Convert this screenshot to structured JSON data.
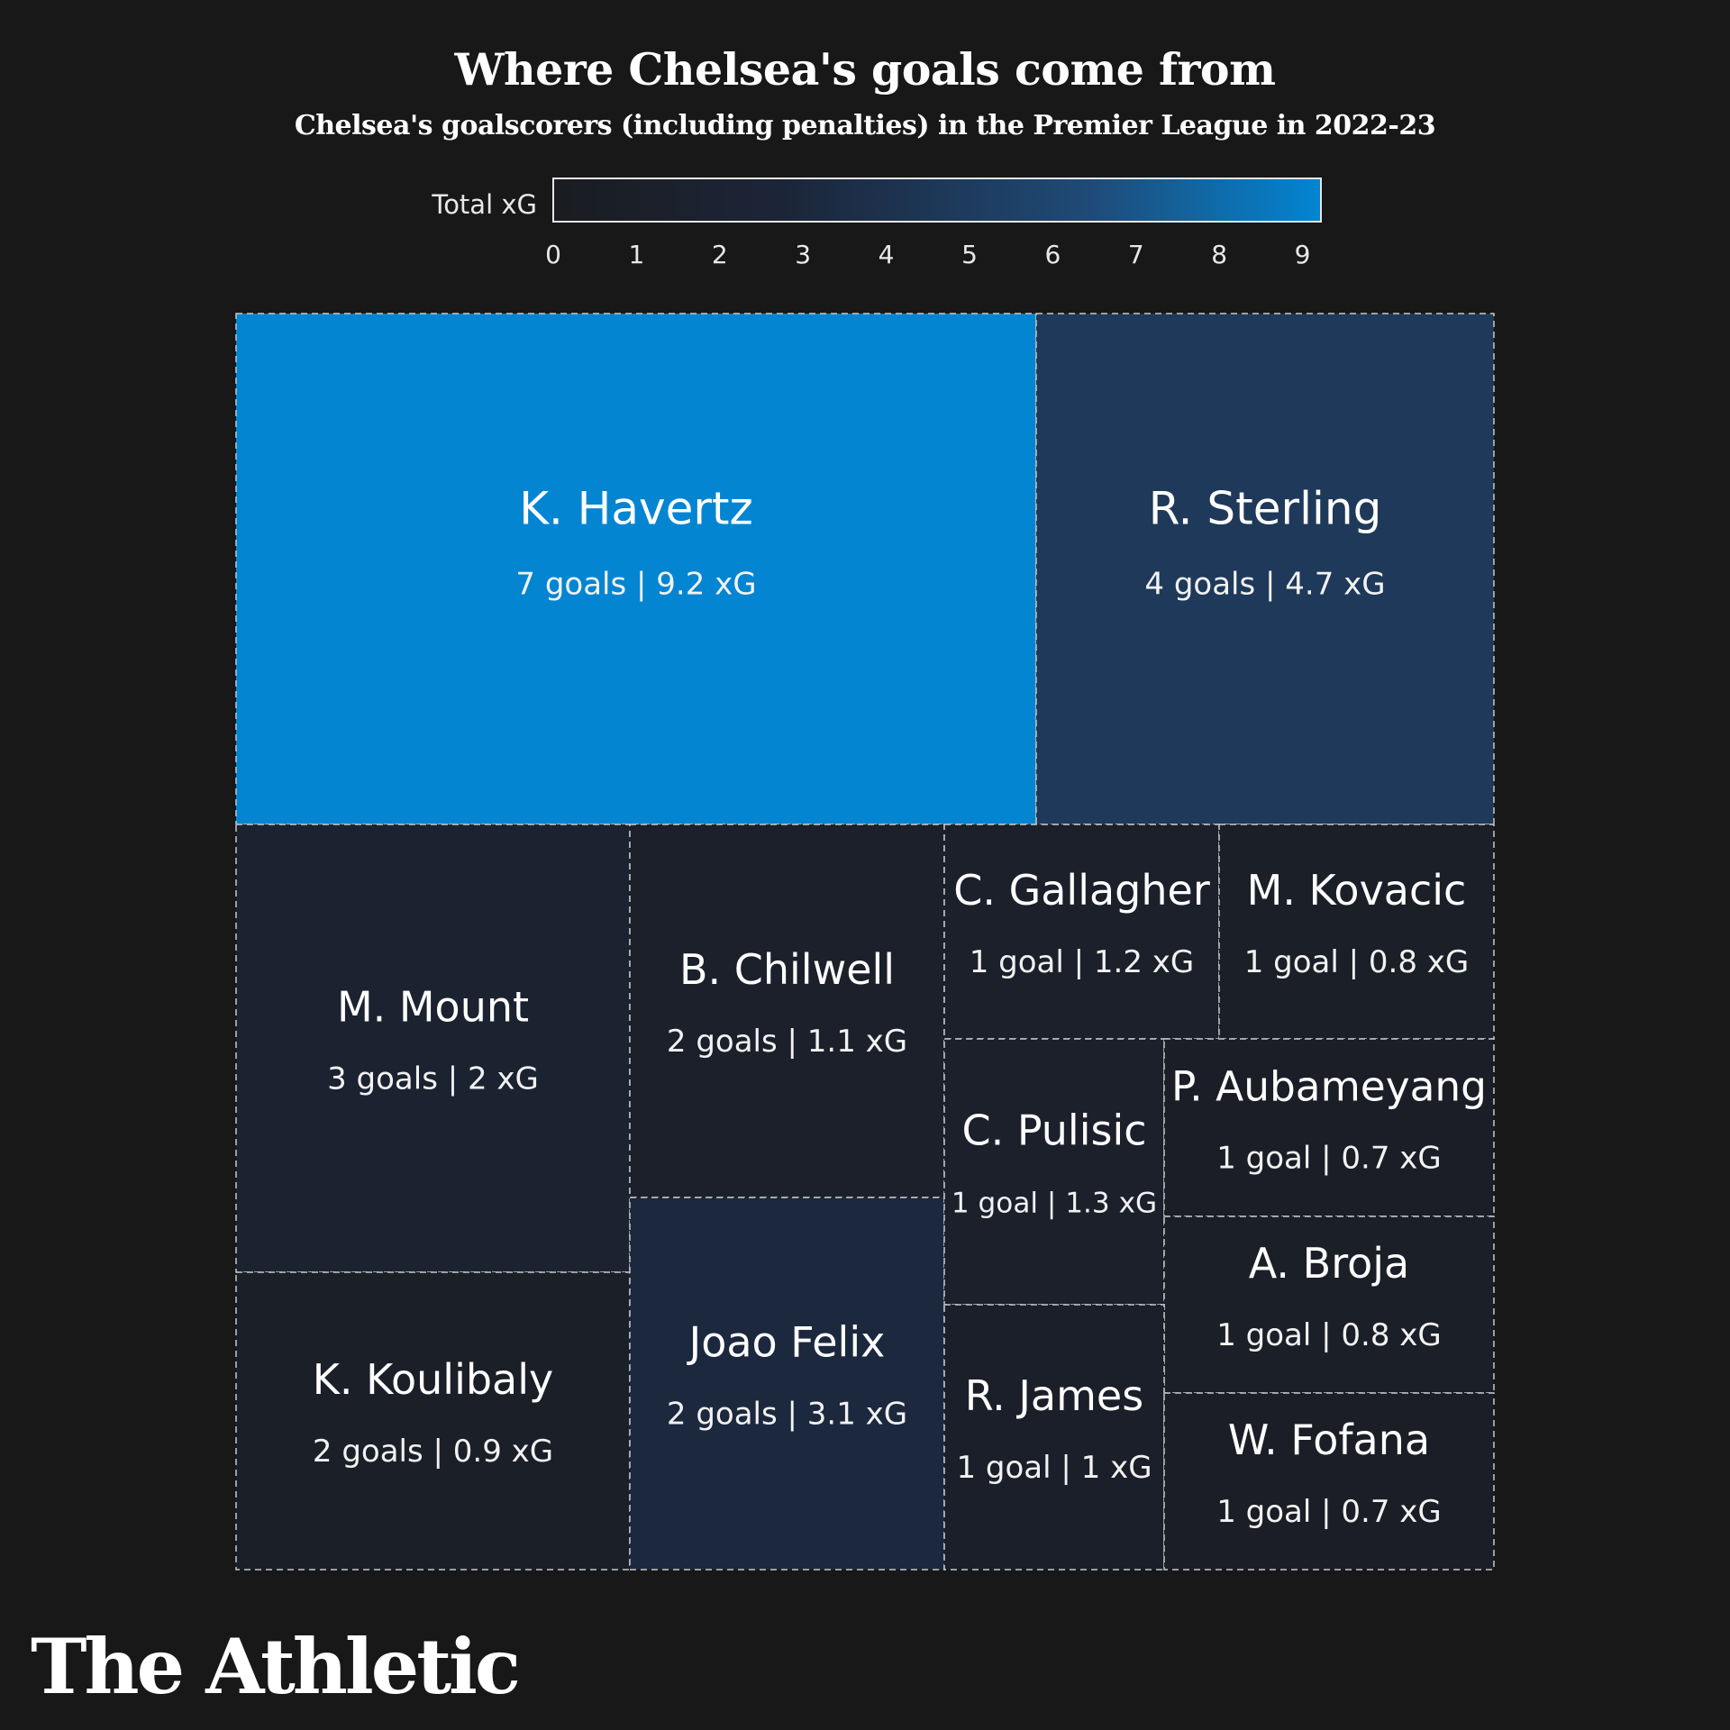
{
  "chart_data": {
    "type": "treemap",
    "title": "Where Chelsea's goals come from",
    "subtitle": "Chelsea's goalscorers (including penalties) in the Premier League in 2022-23",
    "legend": {
      "label": "Total xG",
      "range": [
        0,
        9.2
      ],
      "ticks": [
        "0",
        "1",
        "2",
        "3",
        "4",
        "5",
        "6",
        "7",
        "8",
        "9"
      ],
      "color_low": "#1a1c20",
      "color_high": "#0385d2"
    },
    "players": [
      {
        "name": "K. Havertz",
        "goals": 7,
        "xg": 9.2,
        "stat": "7 goals | 9.2 xG"
      },
      {
        "name": "R. Sterling",
        "goals": 4,
        "xg": 4.7,
        "stat": "4 goals | 4.7 xG"
      },
      {
        "name": "M. Mount",
        "goals": 3,
        "xg": 2,
        "stat": "3 goals | 2 xG"
      },
      {
        "name": "K. Koulibaly",
        "goals": 2,
        "xg": 0.9,
        "stat": "2 goals | 0.9 xG"
      },
      {
        "name": "B. Chilwell",
        "goals": 2,
        "xg": 1.1,
        "stat": "2 goals | 1.1 xG"
      },
      {
        "name": "Joao Felix",
        "goals": 2,
        "xg": 3.1,
        "stat": "2 goals | 3.1 xG"
      },
      {
        "name": "C. Gallagher",
        "goals": 1,
        "xg": 1.2,
        "stat": "1 goal | 1.2 xG"
      },
      {
        "name": "M. Kovacic",
        "goals": 1,
        "xg": 0.8,
        "stat": "1 goal | 0.8 xG"
      },
      {
        "name": "C. Pulisic",
        "goals": 1,
        "xg": 1.3,
        "stat": "1 goal | 1.3 xG"
      },
      {
        "name": "P. Aubameyang",
        "goals": 1,
        "xg": 0.7,
        "stat": "1 goal | 0.7 xG"
      },
      {
        "name": "A. Broja",
        "goals": 1,
        "xg": 0.8,
        "stat": "1 goal | 0.8 xG"
      },
      {
        "name": "R. James",
        "goals": 1,
        "xg": 1,
        "stat": "1 goal | 1 xG"
      },
      {
        "name": "W. Fofana",
        "goals": 1,
        "xg": 0.7,
        "stat": "1 goal | 0.7 xG"
      }
    ]
  },
  "brand": {
    "logo_text": "The Athletic"
  }
}
